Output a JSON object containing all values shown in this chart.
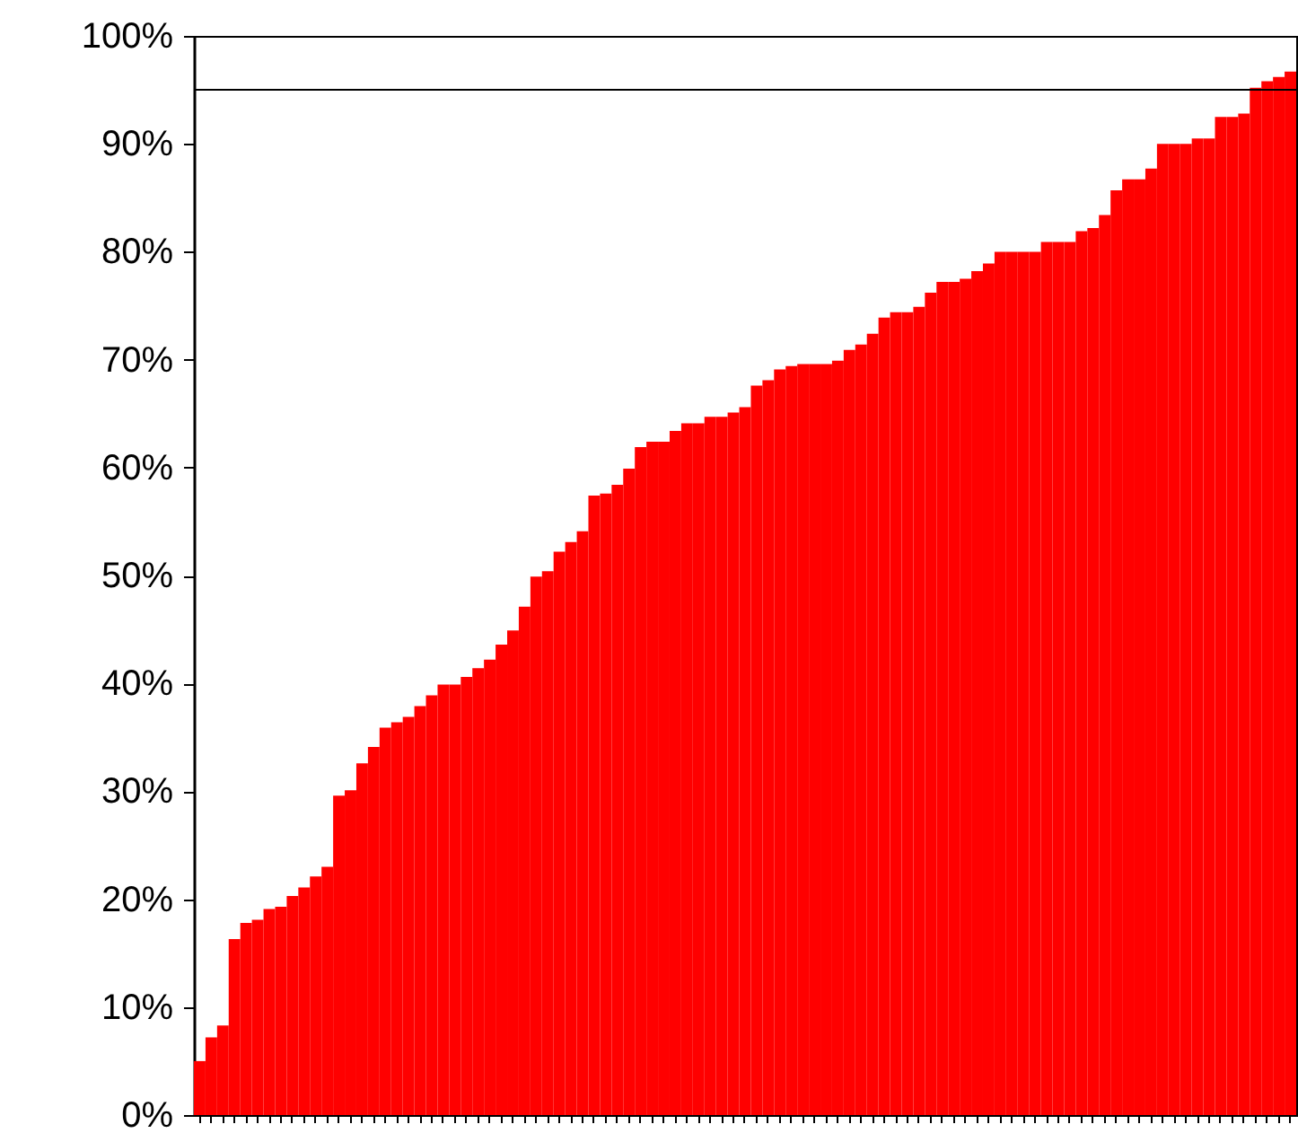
{
  "chart_data": {
    "type": "bar",
    "categories": [
      null,
      null,
      null,
      null,
      null,
      null,
      null,
      null,
      null,
      null,
      null,
      null,
      null,
      null,
      null,
      null,
      null,
      null,
      null,
      null,
      null,
      null,
      null,
      null,
      null,
      null,
      null,
      null,
      null,
      null,
      null,
      null,
      null,
      null,
      null,
      null,
      null,
      null,
      null,
      null,
      null,
      null,
      null,
      null,
      null,
      null,
      null,
      null,
      null,
      null,
      null,
      null,
      null,
      null,
      null,
      null,
      null,
      null,
      null,
      null,
      null,
      null,
      null,
      null,
      null,
      null,
      null,
      null,
      null,
      null,
      null,
      null,
      null,
      null,
      null,
      null,
      null,
      null,
      null,
      null,
      null,
      null,
      null,
      null,
      null,
      null,
      null,
      null,
      null,
      null,
      null,
      null,
      null,
      null,
      null
    ],
    "values": [
      5.0,
      7.2,
      8.3,
      16.3,
      17.8,
      18.1,
      19.1,
      19.3,
      20.3,
      21.1,
      22.1,
      23.0,
      29.6,
      30.1,
      32.6,
      34.1,
      35.9,
      36.4,
      36.9,
      37.9,
      38.9,
      39.9,
      39.9,
      40.6,
      41.4,
      42.2,
      43.6,
      44.9,
      47.1,
      49.9,
      50.4,
      52.2,
      53.1,
      54.1,
      57.4,
      57.6,
      58.4,
      59.9,
      61.9,
      62.4,
      62.4,
      63.4,
      64.1,
      64.1,
      64.7,
      64.7,
      65.1,
      65.6,
      67.6,
      68.1,
      69.1,
      69.4,
      69.6,
      69.6,
      69.6,
      69.9,
      70.9,
      71.4,
      72.4,
      73.9,
      74.4,
      74.4,
      74.9,
      76.2,
      77.2,
      77.2,
      77.5,
      78.2,
      78.9,
      80.0,
      80.0,
      80.0,
      80.0,
      80.9,
      80.9,
      80.9,
      81.9,
      82.2,
      83.4,
      85.7,
      86.7,
      86.7,
      87.7,
      90.0,
      90.0,
      90.0,
      90.5,
      90.5,
      92.5,
      92.5,
      92.8,
      95.2,
      95.8,
      96.2,
      96.7
    ],
    "color": "#ff0000",
    "ylim": [
      0,
      100
    ],
    "yticks": [
      {
        "value": 0,
        "label": "0%"
      },
      {
        "value": 10,
        "label": "10%"
      },
      {
        "value": 20,
        "label": "20%"
      },
      {
        "value": 30,
        "label": "30%"
      },
      {
        "value": 40,
        "label": "40%"
      },
      {
        "value": 50,
        "label": "50%"
      },
      {
        "value": 60,
        "label": "60%"
      },
      {
        "value": 70,
        "label": "70%"
      },
      {
        "value": 80,
        "label": "80%"
      },
      {
        "value": 90,
        "label": "90%"
      },
      {
        "value": 100,
        "label": "100%"
      }
    ],
    "grid": false,
    "tick_labels": "y",
    "ref_lines": [
      {
        "axis": "y",
        "value": 95,
        "color": "#000000"
      }
    ]
  }
}
